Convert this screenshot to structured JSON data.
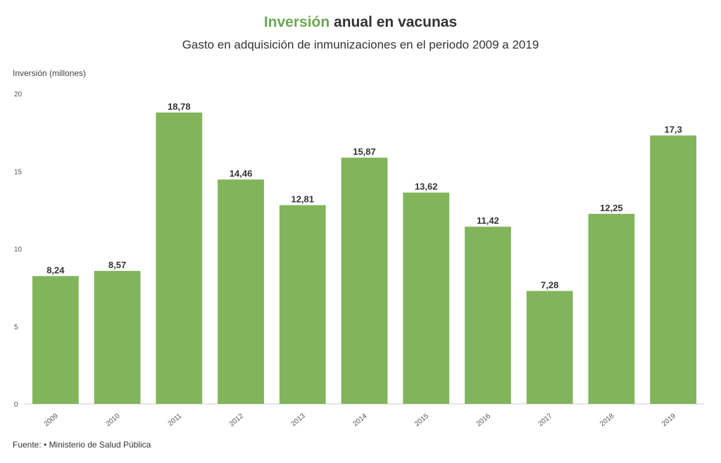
{
  "header": {
    "title_accent": "Inversión",
    "title_rest": " anual en vacunas",
    "subtitle": "Gasto en adquisición de inmunizaciones en el periodo 2009 a 2019"
  },
  "footer": {
    "source": "Fuente: • Ministerio de Salud Pública"
  },
  "colors": {
    "bar": "#82b55b",
    "accent": "#6aa84f"
  },
  "chart_data": {
    "type": "bar",
    "title": "Inversión anual en vacunas",
    "subtitle": "Gasto en adquisición de inmunizaciones en el periodo 2009 a 2019",
    "ylabel": "Inversión (millones)",
    "xlabel": "",
    "ylim": [
      0,
      20
    ],
    "yticks": [
      "0",
      "5",
      "10",
      "15",
      "20"
    ],
    "grid": false,
    "categories": [
      "2009",
      "2010",
      "2011",
      "2012",
      "2013",
      "2014",
      "2015",
      "2016",
      "2017",
      "2018",
      "2019"
    ],
    "values": [
      8.24,
      8.57,
      18.78,
      14.46,
      12.81,
      15.87,
      13.62,
      11.42,
      7.28,
      12.25,
      17.3
    ],
    "value_labels": [
      "8,24",
      "8,57",
      "18,78",
      "14,46",
      "12,81",
      "15,87",
      "13,62",
      "11,42",
      "7,28",
      "12,25",
      "17,3"
    ]
  }
}
